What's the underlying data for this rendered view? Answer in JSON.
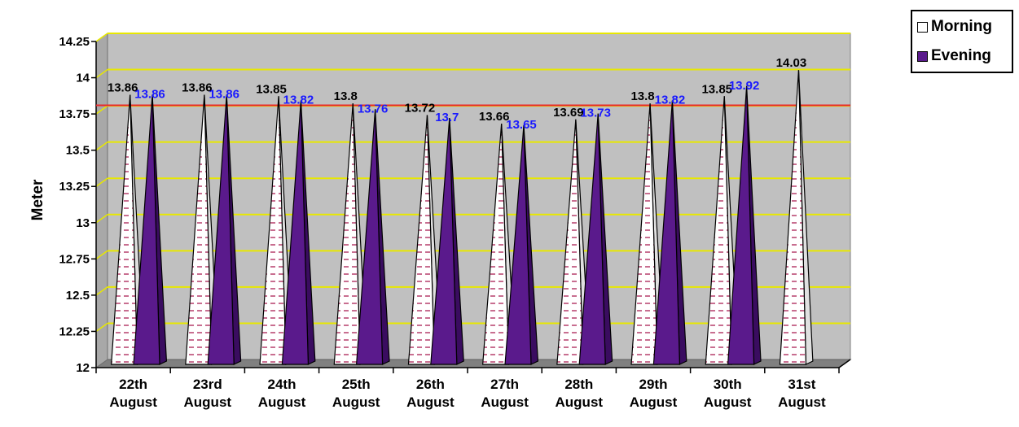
{
  "chart_data": {
    "type": "bar",
    "bar_shape": "pyramid",
    "title": "",
    "xlabel": "",
    "ylabel": "Meter",
    "ylim": [
      12,
      14.25
    ],
    "yticks": [
      "12",
      "12.25",
      "12.5",
      "12.75",
      "13",
      "13.25",
      "13.5",
      "13.75",
      "14",
      "14.25"
    ],
    "categories": [
      [
        "22th",
        "August"
      ],
      [
        "23rd",
        "August"
      ],
      [
        "24th",
        "August"
      ],
      [
        "25th",
        "August"
      ],
      [
        "26th",
        "August"
      ],
      [
        "27th",
        "August"
      ],
      [
        "28th",
        "August"
      ],
      [
        "29th",
        "August"
      ],
      [
        "30th",
        "August"
      ],
      [
        "31st",
        "August"
      ]
    ],
    "series": [
      {
        "name": "Morning",
        "values": [
          13.86,
          13.86,
          13.85,
          13.8,
          13.72,
          13.66,
          13.69,
          13.8,
          13.85,
          14.03
        ],
        "labels": [
          "13.86",
          "13.86",
          "13.85",
          "13.8",
          "13.72",
          "13.66",
          "13.69",
          "13.8",
          "13.85",
          "14.03"
        ],
        "color": "#ffffff",
        "pattern_color": "#b03060",
        "label_color": "#000000"
      },
      {
        "name": "Evening",
        "values": [
          13.86,
          13.86,
          13.82,
          13.76,
          13.7,
          13.65,
          13.73,
          13.82,
          13.92,
          null
        ],
        "labels": [
          "13.86",
          "13.86",
          "13.82",
          "13.76",
          "13.7",
          "13.65",
          "13.73",
          "13.82",
          "13.92",
          ""
        ],
        "color": "#5a1a8c",
        "label_color": "#1a1aff"
      }
    ],
    "reference_line": {
      "value": 13.77,
      "color": "#e8282a"
    },
    "gridlines": true,
    "gridline_color": "#e8e800",
    "plot_background": "#c0c0c0",
    "legend_position": "top-right"
  }
}
